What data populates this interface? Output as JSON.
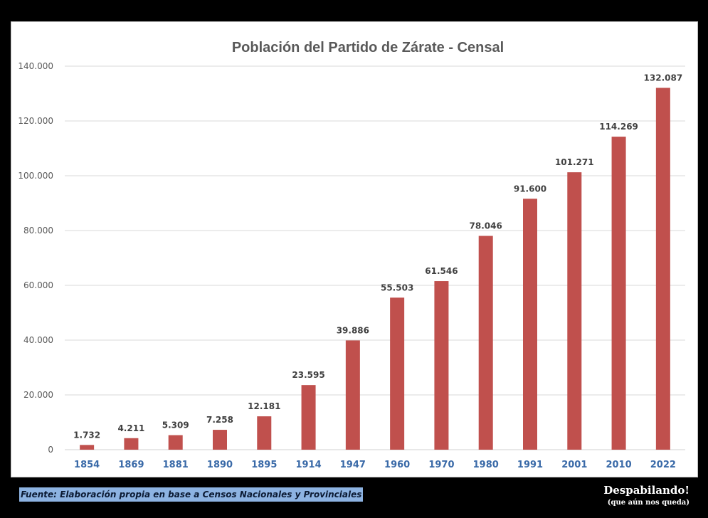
{
  "chart_data": {
    "type": "bar",
    "title": "Población del Partido de Zárate - Censal",
    "xlabel": "",
    "ylabel": "",
    "categories": [
      "1854",
      "1869",
      "1881",
      "1890",
      "1895",
      "1914",
      "1947",
      "1960",
      "1970",
      "1980",
      "1991",
      "2001",
      "2010",
      "2022"
    ],
    "values": [
      1732,
      4211,
      5309,
      7258,
      12181,
      23595,
      39886,
      55503,
      61546,
      78046,
      91600,
      101271,
      114269,
      132087
    ],
    "data_labels": [
      "1.732",
      "4.211",
      "5.309",
      "7.258",
      "12.181",
      "23.595",
      "39.886",
      "55.503",
      "61.546",
      "78.046",
      "91.600",
      "101.271",
      "114.269",
      "132.087"
    ],
    "ylim": [
      0,
      140000
    ],
    "yticks": [
      0,
      20000,
      40000,
      60000,
      80000,
      100000,
      120000,
      140000
    ],
    "ytick_labels": [
      "0",
      "20.000",
      "40.000",
      "60.000",
      "80.000",
      "100.000",
      "120.000",
      "140.000"
    ],
    "grid": true,
    "legend": "none",
    "colors": {
      "bar": "#C0504D",
      "title": "#595959",
      "xtick": "#3A6AA8",
      "data_label": "#404040",
      "grid": "#D9D9D9"
    }
  },
  "footer": {
    "source": "Fuente: Elaboración propia en base a Censos Nacionales y Provinciales",
    "brand_line1": "Despabilando!",
    "brand_line2": "(que aún nos queda)"
  }
}
